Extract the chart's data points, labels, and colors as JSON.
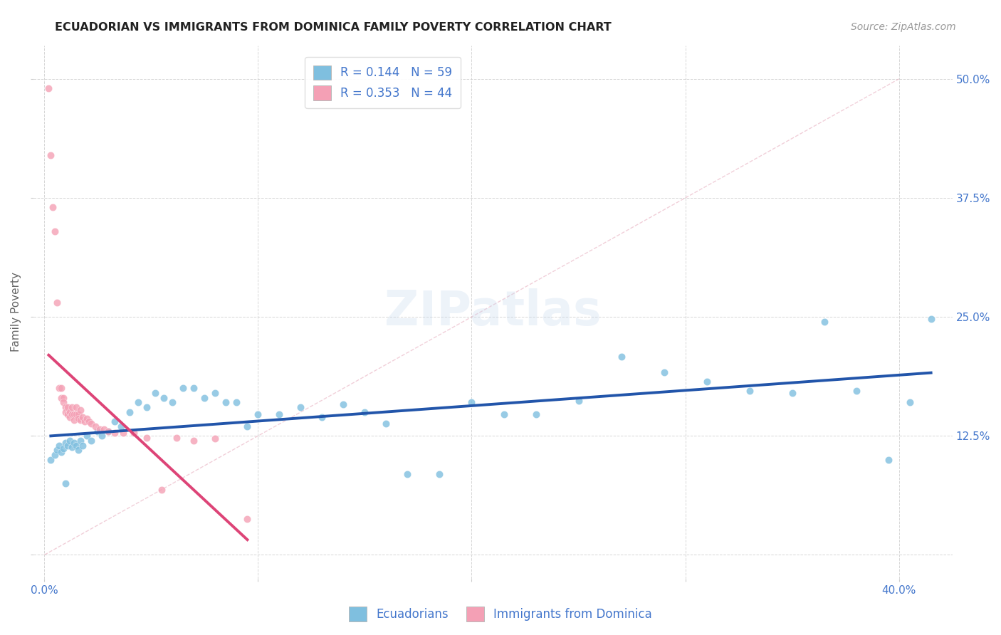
{
  "title": "ECUADORIAN VS IMMIGRANTS FROM DOMINICA FAMILY POVERTY CORRELATION CHART",
  "source": "Source: ZipAtlas.com",
  "ylabel": "Family Poverty",
  "x_ticks": [
    0.0,
    0.1,
    0.2,
    0.3,
    0.4
  ],
  "x_tick_labels_show": [
    "0.0%",
    "40.0%"
  ],
  "y_ticks": [
    0.0,
    0.125,
    0.25,
    0.375,
    0.5
  ],
  "y_tick_labels": [
    "",
    "12.5%",
    "25.0%",
    "37.5%",
    "50.0%"
  ],
  "xlim": [
    -0.005,
    0.425
  ],
  "ylim": [
    -0.025,
    0.535
  ],
  "blue_color": "#7fbfdf",
  "pink_color": "#f4a0b5",
  "blue_line_color": "#2255aa",
  "pink_line_color": "#dd4477",
  "diagonal_color": "#cccccc",
  "text_color": "#4477cc",
  "r_blue": 0.144,
  "n_blue": 59,
  "r_pink": 0.353,
  "n_pink": 44,
  "blue_scatter_x": [
    0.003,
    0.005,
    0.006,
    0.007,
    0.008,
    0.009,
    0.01,
    0.011,
    0.012,
    0.013,
    0.014,
    0.015,
    0.016,
    0.017,
    0.018,
    0.02,
    0.022,
    0.025,
    0.027,
    0.03,
    0.033,
    0.036,
    0.04,
    0.044,
    0.048,
    0.052,
    0.056,
    0.06,
    0.065,
    0.07,
    0.075,
    0.08,
    0.085,
    0.09,
    0.095,
    0.1,
    0.11,
    0.12,
    0.13,
    0.14,
    0.15,
    0.16,
    0.17,
    0.185,
    0.2,
    0.215,
    0.23,
    0.25,
    0.27,
    0.29,
    0.31,
    0.33,
    0.35,
    0.365,
    0.38,
    0.395,
    0.405,
    0.415,
    0.01
  ],
  "blue_scatter_y": [
    0.1,
    0.105,
    0.11,
    0.115,
    0.108,
    0.112,
    0.118,
    0.115,
    0.12,
    0.113,
    0.118,
    0.115,
    0.11,
    0.12,
    0.115,
    0.125,
    0.12,
    0.13,
    0.125,
    0.13,
    0.14,
    0.135,
    0.15,
    0.16,
    0.155,
    0.17,
    0.165,
    0.16,
    0.175,
    0.175,
    0.165,
    0.17,
    0.16,
    0.16,
    0.135,
    0.148,
    0.148,
    0.155,
    0.145,
    0.158,
    0.15,
    0.138,
    0.085,
    0.085,
    0.16,
    0.148,
    0.148,
    0.162,
    0.208,
    0.192,
    0.182,
    0.172,
    0.17,
    0.245,
    0.172,
    0.1,
    0.16,
    0.248,
    0.075
  ],
  "pink_scatter_x": [
    0.002,
    0.003,
    0.004,
    0.005,
    0.006,
    0.007,
    0.008,
    0.008,
    0.009,
    0.009,
    0.01,
    0.01,
    0.011,
    0.011,
    0.012,
    0.012,
    0.013,
    0.013,
    0.014,
    0.014,
    0.015,
    0.015,
    0.016,
    0.016,
    0.017,
    0.017,
    0.018,
    0.019,
    0.02,
    0.021,
    0.022,
    0.024,
    0.026,
    0.028,
    0.03,
    0.033,
    0.037,
    0.042,
    0.048,
    0.055,
    0.062,
    0.07,
    0.08,
    0.095
  ],
  "pink_scatter_y": [
    0.49,
    0.42,
    0.365,
    0.34,
    0.265,
    0.175,
    0.175,
    0.165,
    0.165,
    0.16,
    0.155,
    0.15,
    0.155,
    0.148,
    0.15,
    0.145,
    0.155,
    0.148,
    0.148,
    0.142,
    0.155,
    0.148,
    0.148,
    0.143,
    0.152,
    0.142,
    0.145,
    0.14,
    0.143,
    0.14,
    0.138,
    0.135,
    0.132,
    0.132,
    0.13,
    0.128,
    0.128,
    0.128,
    0.123,
    0.068,
    0.123,
    0.12,
    0.122,
    0.038
  ],
  "legend_labels": [
    "Ecuadorians",
    "Immigrants from Dominica"
  ],
  "watermark": "ZIPatlas",
  "grid_color": "#cccccc"
}
